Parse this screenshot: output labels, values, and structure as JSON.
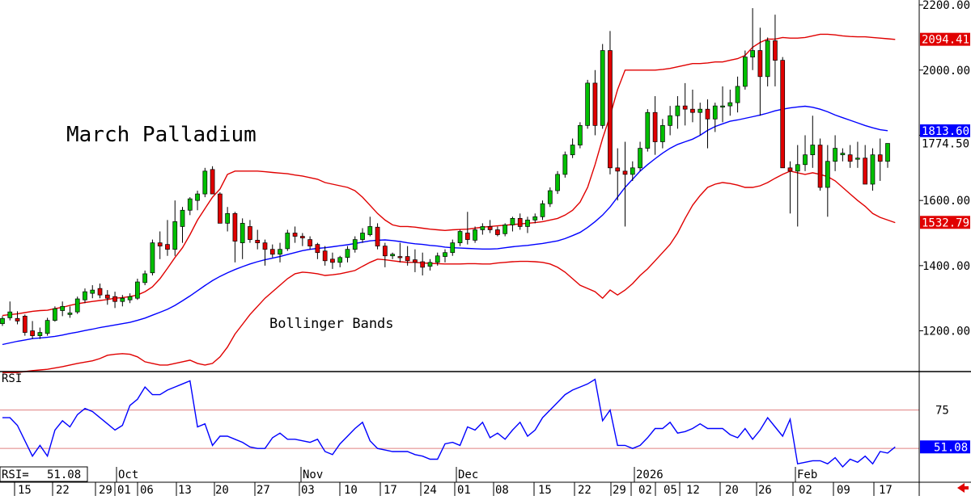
{
  "chart_data": {
    "type": "candlestick",
    "title": "March Palladium",
    "annotation": "Bollinger Bands",
    "price_axis": {
      "ticks": [
        "1200.00",
        "1400.00",
        "1600.00",
        "1800.00",
        "2000.00",
        "2200.00"
      ],
      "tick_values": [
        1200,
        1400,
        1600,
        1800,
        2000,
        2200
      ],
      "range": [
        1075,
        2215
      ]
    },
    "value_tags": [
      {
        "label": "2094.41",
        "value": 2094.41,
        "color": "#e00000",
        "text_color": "#e00000",
        "bg": "#ffffff",
        "text_bg": "#e00000",
        "text_fg": "#ffffff"
      },
      {
        "label": "1813.60",
        "value": 1813.6,
        "color": "#0000ff",
        "text_fg": "#ffffff",
        "text_bg": "#0000ff"
      },
      {
        "label": "1774.50",
        "value": 1774.5,
        "color": "#000000",
        "text_fg": "#000000",
        "text_bg": "#ffffff"
      },
      {
        "label": "1532.79",
        "value": 1532.79,
        "color": "#e00000",
        "text_fg": "#ffffff",
        "text_bg": "#e00000"
      }
    ],
    "candles": [
      [
        1222,
        1245,
        1215,
        1238
      ],
      [
        1240,
        1290,
        1232,
        1258
      ],
      [
        1238,
        1260,
        1220,
        1230
      ],
      [
        1245,
        1250,
        1185,
        1195
      ],
      [
        1200,
        1230,
        1175,
        1185
      ],
      [
        1185,
        1210,
        1175,
        1195
      ],
      [
        1192,
        1240,
        1185,
        1232
      ],
      [
        1232,
        1275,
        1228,
        1268
      ],
      [
        1262,
        1290,
        1245,
        1275
      ],
      [
        1250,
        1275,
        1240,
        1255
      ],
      [
        1258,
        1305,
        1252,
        1298
      ],
      [
        1295,
        1330,
        1285,
        1320
      ],
      [
        1315,
        1340,
        1300,
        1325
      ],
      [
        1330,
        1345,
        1300,
        1310
      ],
      [
        1310,
        1325,
        1280,
        1300
      ],
      [
        1305,
        1320,
        1270,
        1290
      ],
      [
        1290,
        1310,
        1275,
        1300
      ],
      [
        1295,
        1315,
        1285,
        1305
      ],
      [
        1300,
        1360,
        1295,
        1350
      ],
      [
        1348,
        1385,
        1340,
        1375
      ],
      [
        1378,
        1480,
        1370,
        1470
      ],
      [
        1470,
        1505,
        1420,
        1460
      ],
      [
        1465,
        1540,
        1430,
        1450
      ],
      [
        1450,
        1600,
        1430,
        1535
      ],
      [
        1520,
        1580,
        1470,
        1570
      ],
      [
        1570,
        1610,
        1555,
        1605
      ],
      [
        1600,
        1630,
        1570,
        1620
      ],
      [
        1620,
        1700,
        1610,
        1690
      ],
      [
        1695,
        1705,
        1620,
        1620
      ],
      [
        1620,
        1625,
        1530,
        1530
      ],
      [
        1530,
        1580,
        1505,
        1560
      ],
      [
        1560,
        1565,
        1410,
        1475
      ],
      [
        1470,
        1545,
        1420,
        1530
      ],
      [
        1520,
        1540,
        1470,
        1480
      ],
      [
        1478,
        1510,
        1450,
        1470
      ],
      [
        1470,
        1480,
        1400,
        1450
      ],
      [
        1450,
        1465,
        1425,
        1435
      ],
      [
        1435,
        1470,
        1410,
        1450
      ],
      [
        1452,
        1510,
        1445,
        1500
      ],
      [
        1500,
        1520,
        1470,
        1490
      ],
      [
        1490,
        1500,
        1460,
        1485
      ],
      [
        1480,
        1490,
        1450,
        1460
      ],
      [
        1465,
        1470,
        1420,
        1440
      ],
      [
        1445,
        1460,
        1400,
        1415
      ],
      [
        1420,
        1440,
        1390,
        1410
      ],
      [
        1410,
        1430,
        1395,
        1425
      ],
      [
        1425,
        1460,
        1410,
        1450
      ],
      [
        1450,
        1490,
        1440,
        1480
      ],
      [
        1480,
        1515,
        1470,
        1500
      ],
      [
        1495,
        1550,
        1490,
        1520
      ],
      [
        1518,
        1530,
        1450,
        1460
      ],
      [
        1460,
        1470,
        1395,
        1430
      ],
      [
        1430,
        1440,
        1420,
        1435
      ],
      [
        1428,
        1470,
        1410,
        1425
      ],
      [
        1428,
        1460,
        1400,
        1415
      ],
      [
        1418,
        1450,
        1380,
        1410
      ],
      [
        1412,
        1440,
        1370,
        1395
      ],
      [
        1398,
        1420,
        1385,
        1410
      ],
      [
        1410,
        1440,
        1400,
        1430
      ],
      [
        1428,
        1450,
        1410,
        1440
      ],
      [
        1440,
        1480,
        1430,
        1470
      ],
      [
        1470,
        1510,
        1460,
        1505
      ],
      [
        1500,
        1565,
        1465,
        1480
      ],
      [
        1478,
        1520,
        1470,
        1510
      ],
      [
        1510,
        1530,
        1495,
        1520
      ],
      [
        1520,
        1540,
        1500,
        1510
      ],
      [
        1510,
        1520,
        1490,
        1495
      ],
      [
        1498,
        1530,
        1490,
        1525
      ],
      [
        1525,
        1550,
        1505,
        1545
      ],
      [
        1545,
        1560,
        1510,
        1520
      ],
      [
        1520,
        1550,
        1500,
        1540
      ],
      [
        1540,
        1560,
        1530,
        1550
      ],
      [
        1550,
        1600,
        1540,
        1590
      ],
      [
        1590,
        1640,
        1580,
        1630
      ],
      [
        1630,
        1690,
        1620,
        1680
      ],
      [
        1680,
        1750,
        1670,
        1740
      ],
      [
        1740,
        1790,
        1730,
        1770
      ],
      [
        1770,
        1840,
        1760,
        1830
      ],
      [
        1830,
        1970,
        1820,
        1960
      ],
      [
        1960,
        2000,
        1800,
        1830
      ],
      [
        1830,
        2080,
        1820,
        2060
      ],
      [
        2060,
        2120,
        1680,
        1700
      ],
      [
        1700,
        1760,
        1600,
        1690
      ],
      [
        1690,
        1780,
        1520,
        1680
      ],
      [
        1680,
        1720,
        1660,
        1700
      ],
      [
        1700,
        1780,
        1690,
        1760
      ],
      [
        1760,
        1880,
        1750,
        1870
      ],
      [
        1870,
        1920,
        1740,
        1780
      ],
      [
        1780,
        1850,
        1760,
        1830
      ],
      [
        1830,
        1890,
        1800,
        1860
      ],
      [
        1860,
        1920,
        1820,
        1890
      ],
      [
        1890,
        1960,
        1830,
        1880
      ],
      [
        1880,
        1940,
        1840,
        1870
      ],
      [
        1870,
        1900,
        1800,
        1880
      ],
      [
        1880,
        1910,
        1760,
        1850
      ],
      [
        1850,
        1900,
        1810,
        1890
      ],
      [
        1890,
        1950,
        1840,
        1890
      ],
      [
        1890,
        1940,
        1860,
        1900
      ],
      [
        1900,
        1980,
        1870,
        1950
      ],
      [
        1950,
        2060,
        1940,
        2040
      ],
      [
        2040,
        2190,
        2000,
        2060
      ],
      [
        2060,
        2130,
        1860,
        1980
      ],
      [
        1980,
        2100,
        1950,
        2090
      ],
      [
        2090,
        2170,
        1950,
        2030
      ],
      [
        2030,
        2040,
        1700,
        1700
      ],
      [
        1700,
        1720,
        1560,
        1690
      ],
      [
        1690,
        1770,
        1520,
        1710
      ],
      [
        1710,
        1800,
        1690,
        1740
      ],
      [
        1740,
        1860,
        1700,
        1770
      ],
      [
        1770,
        1790,
        1630,
        1640
      ],
      [
        1640,
        1770,
        1550,
        1720
      ],
      [
        1720,
        1800,
        1690,
        1760
      ],
      [
        1740,
        1760,
        1720,
        1745
      ],
      [
        1740,
        1770,
        1700,
        1720
      ],
      [
        1728,
        1780,
        1700,
        1730
      ],
      [
        1730,
        1770,
        1650,
        1650
      ],
      [
        1650,
        1760,
        1630,
        1740
      ],
      [
        1740,
        1790,
        1660,
        1720
      ],
      [
        1720,
        1770,
        1700,
        1775
      ]
    ],
    "middle_band": [
      1158,
      1163,
      1168,
      1172,
      1176,
      1178,
      1180,
      1183,
      1187,
      1192,
      1196,
      1201,
      1205,
      1210,
      1214,
      1218,
      1222,
      1226,
      1232,
      1239,
      1248,
      1257,
      1266,
      1278,
      1292,
      1307,
      1323,
      1339,
      1354,
      1367,
      1378,
      1388,
      1397,
      1405,
      1412,
      1418,
      1423,
      1428,
      1434,
      1440,
      1446,
      1450,
      1453,
      1455,
      1458,
      1461,
      1464,
      1468,
      1472,
      1476,
      1478,
      1479,
      1477,
      1474,
      1470,
      1467,
      1465,
      1462,
      1460,
      1457,
      1455,
      1454,
      1453,
      1452,
      1451,
      1451,
      1452,
      1455,
      1458,
      1460,
      1462,
      1465,
      1468,
      1472,
      1476,
      1483,
      1492,
      1502,
      1517,
      1535,
      1555,
      1580,
      1610,
      1640,
      1665,
      1690,
      1710,
      1728,
      1745,
      1760,
      1772,
      1780,
      1788,
      1800,
      1815,
      1827,
      1835,
      1843,
      1847,
      1852,
      1857,
      1862,
      1868,
      1875,
      1880,
      1884,
      1887,
      1889,
      1886,
      1880,
      1872,
      1862,
      1854,
      1846,
      1838,
      1830,
      1823,
      1817,
      1814
    ],
    "upper_band": [
      1247,
      1250,
      1252,
      1256,
      1260,
      1262,
      1263,
      1268,
      1272,
      1278,
      1283,
      1287,
      1290,
      1293,
      1296,
      1300,
      1302,
      1305,
      1310,
      1320,
      1335,
      1360,
      1392,
      1425,
      1455,
      1495,
      1540,
      1575,
      1610,
      1635,
      1680,
      1690,
      1690,
      1690,
      1690,
      1688,
      1686,
      1684,
      1682,
      1678,
      1675,
      1670,
      1665,
      1655,
      1650,
      1645,
      1640,
      1630,
      1610,
      1585,
      1560,
      1540,
      1525,
      1520,
      1520,
      1518,
      1515,
      1512,
      1510,
      1508,
      1510,
      1511,
      1512,
      1515,
      1518,
      1520,
      1522,
      1524,
      1526,
      1528,
      1530,
      1532,
      1535,
      1540,
      1545,
      1555,
      1570,
      1595,
      1640,
      1710,
      1790,
      1860,
      1940,
      2000,
      2000,
      2000,
      2000,
      2000,
      2002,
      2005,
      2010,
      2015,
      2020,
      2020,
      2022,
      2025,
      2025,
      2030,
      2035,
      2045,
      2070,
      2085,
      2095,
      2095,
      2100,
      2098,
      2098,
      2100,
      2105,
      2110,
      2110,
      2108,
      2105,
      2103,
      2102,
      2102,
      2100,
      2098,
      2096,
      2094
    ],
    "lower_band": [
      1072,
      1072,
      1072,
      1075,
      1078,
      1080,
      1082,
      1086,
      1090,
      1095,
      1100,
      1104,
      1108,
      1115,
      1125,
      1128,
      1130,
      1128,
      1120,
      1105,
      1100,
      1095,
      1095,
      1100,
      1105,
      1110,
      1100,
      1095,
      1100,
      1120,
      1150,
      1190,
      1220,
      1250,
      1275,
      1300,
      1320,
      1340,
      1360,
      1375,
      1380,
      1378,
      1375,
      1370,
      1372,
      1375,
      1380,
      1385,
      1398,
      1410,
      1420,
      1418,
      1415,
      1412,
      1410,
      1410,
      1408,
      1407,
      1406,
      1405,
      1405,
      1405,
      1406,
      1406,
      1405,
      1405,
      1408,
      1410,
      1412,
      1413,
      1413,
      1412,
      1410,
      1405,
      1395,
      1380,
      1360,
      1340,
      1330,
      1320,
      1300,
      1325,
      1310,
      1325,
      1345,
      1370,
      1390,
      1415,
      1440,
      1465,
      1500,
      1545,
      1585,
      1615,
      1640,
      1650,
      1655,
      1652,
      1647,
      1640,
      1640,
      1645,
      1655,
      1668,
      1680,
      1690,
      1685,
      1680,
      1685,
      1680,
      1673,
      1660,
      1640,
      1620,
      1600,
      1582,
      1560,
      1548,
      1540,
      1532
    ],
    "rsi": {
      "label": "RSI",
      "current_label": "RSI=",
      "current": "51.08",
      "tag": "51.08",
      "ticks": [
        "75"
      ],
      "tick_values": [
        75
      ],
      "range": [
        28,
        99
      ],
      "reference_lines": [
        75,
        50
      ],
      "values": [
        70,
        70,
        65,
        55,
        45,
        52,
        45,
        62,
        68,
        64,
        72,
        76,
        74,
        70,
        66,
        62,
        65,
        78,
        82,
        90,
        85,
        85,
        88,
        90,
        92,
        94,
        64,
        66,
        52,
        58,
        58,
        56,
        54,
        51,
        50,
        50,
        57,
        60,
        56,
        56,
        55,
        54,
        56,
        48,
        46,
        53,
        58,
        63,
        67,
        55,
        50,
        49,
        48,
        48,
        48,
        46,
        45,
        43,
        43,
        53,
        54,
        52,
        64,
        62,
        67,
        57,
        60,
        56,
        62,
        67,
        58,
        62,
        70,
        75,
        80,
        85,
        88,
        90,
        92,
        95,
        68,
        75,
        52,
        52,
        50,
        52,
        57,
        63,
        63,
        67,
        60,
        61,
        63,
        66,
        63,
        63,
        63,
        59,
        57,
        63,
        56,
        62,
        70,
        64,
        58,
        69,
        40,
        41,
        42,
        42,
        40,
        44,
        38,
        43,
        41,
        45,
        40,
        48,
        47,
        51
      ],
      "colors": {
        "line": "#0000ff",
        "ref": "#e08080"
      }
    },
    "x_labels": [
      "15",
      "22",
      "29",
      "01",
      "06",
      "13",
      "20",
      "27",
      "03",
      "10",
      "17",
      "24",
      "01",
      "08",
      "15",
      "22",
      "29",
      "02",
      "05",
      "12",
      "20",
      "26",
      "02",
      "09",
      "17"
    ],
    "month_labels": [
      "Oct",
      "Nov",
      "Dec",
      "2026",
      "Feb"
    ],
    "colors": {
      "up": "#00c000",
      "down": "#e00000",
      "band": "#e00000",
      "ma": "#0000ff",
      "axis": "#000000"
    }
  },
  "icons": {
    "scroll_arrow": "left-arrow-icon",
    "scroll_color": "#e00000"
  }
}
